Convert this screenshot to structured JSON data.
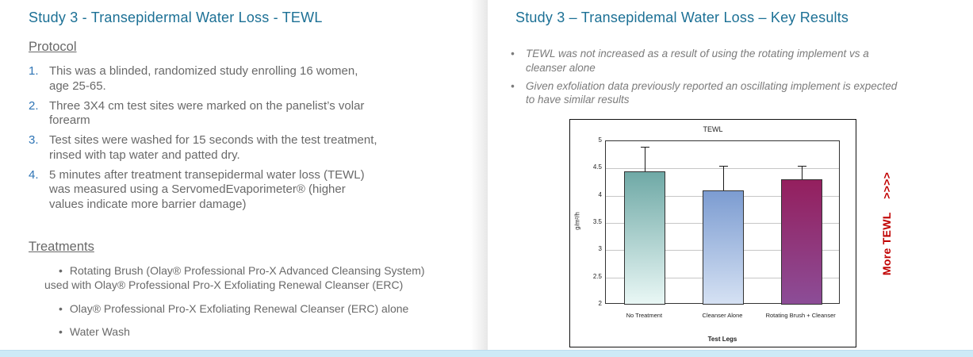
{
  "left_slide": {
    "title": "Study 3 - Transepidermal Water Loss - TEWL",
    "protocol_heading": "Protocol",
    "protocol_items": [
      "This was a blinded, randomized study enrolling 16 women,\nage 25-65.",
      "Three 3X4 cm test sites were marked on the panelist’s volar\nforearm",
      "Test sites were washed for 15 seconds with the test treatment,\nrinsed with tap water and patted dry.",
      "5 minutes after treatment transepidermal water loss (TEWL)\nwas measured using a ServomedEvaporimeter®  (higher\nvalues indicate more barrier damage)"
    ],
    "treatments_heading": "Treatments",
    "treatment_items": [
      "Rotating Brush (Olay® Professional Pro-X Advanced Cleansing System)\nused with Olay® Professional Pro-X Exfoliating Renewal Cleanser (ERC)",
      "Olay® Professional Pro-X Exfoliating Renewal Cleanser (ERC) alone",
      "Water Wash"
    ]
  },
  "right_slide": {
    "title": "Study 3 – Transepidemal Water Loss – Key Results",
    "key_results": [
      "TEWL was not increased as a result of using the rotating implement vs a\ncleanser alone",
      "Given exfoliation data previously reported an oscillating implement is expected\nto have similar results"
    ],
    "more_tewl_label": "More TEWL    >>>>"
  },
  "chart_data": {
    "type": "bar",
    "title": "TEWL",
    "categories": [
      "No Treatment",
      "Cleanser Alone",
      "Rotating Brush + Cleanser"
    ],
    "values": [
      4.45,
      4.1,
      4.3
    ],
    "error_upper": [
      0.45,
      0.45,
      0.25
    ],
    "xlabel": "Test Legs",
    "ylabel": "g/m²/h",
    "ylim": [
      2,
      5
    ],
    "ytick_step": 0.5,
    "grid": true,
    "legend": false,
    "bar_gradients": [
      {
        "top": "#6FA9A6",
        "bottom": "#E9F7F5"
      },
      {
        "top": "#7C9CD1",
        "bottom": "#D5E1F3"
      },
      {
        "top": "#941F5E",
        "bottom": "#8C4D97"
      }
    ]
  },
  "colors": {
    "title_blue": "#1C7095",
    "body_gray": "#696969",
    "list_number_blue": "#2E74B5",
    "more_tewl_red": "#C00000",
    "bottom_band_blue": "#CDEAF7"
  }
}
